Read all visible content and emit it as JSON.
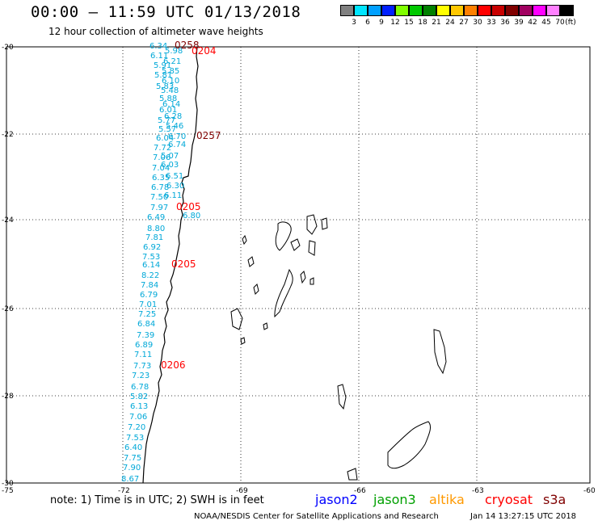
{
  "header": {
    "title": "00:00 – 11:59 UTC 01/13/2018",
    "subtitle": "12 hour collection of altimeter wave heights"
  },
  "legend": {
    "colors": [
      "#808080",
      "#00e5ff",
      "#00a0ff",
      "#0020ff",
      "#80ff00",
      "#00c800",
      "#008000",
      "#ffff00",
      "#ffc800",
      "#ff8000",
      "#ff0000",
      "#c80000",
      "#800000",
      "#a00060",
      "#ff00ff",
      "#ff80ff",
      "#000000"
    ],
    "labels": [
      "3",
      "6",
      "9",
      "12",
      "15",
      "18",
      "21",
      "24",
      "27",
      "30",
      "33",
      "36",
      "39",
      "42",
      "45",
      "70",
      "(ft)"
    ]
  },
  "map": {
    "lat_ticks": [
      "-20",
      "-22",
      "-24",
      "-26",
      "-28",
      "-30"
    ],
    "lon_ticks": [
      "-75",
      "-72",
      "-69",
      "-66",
      "-63",
      "-60"
    ],
    "swh_labels": [
      "6.34",
      "6.11",
      "5.98",
      "6.21",
      "5.91",
      "5.85",
      "5.81",
      "6.10",
      "5.83",
      "5.48",
      "5.88",
      "6.14",
      "6.01",
      "6.28",
      "5.77",
      "5.46",
      "5.57",
      "6.04",
      "6.70",
      "7.72",
      "6.74",
      "7.06",
      "5.07",
      "7.04",
      "6.03",
      "6.35",
      "6.51",
      "6.78",
      "6.30",
      "7.50",
      "6.11",
      "7.97",
      "6.49",
      "8.80",
      "7.81",
      "6.92",
      "7.53",
      "6.14",
      "8.22",
      "7.84",
      "6.79",
      "7.01",
      "7.25",
      "6.84",
      "7.39",
      "6.89",
      "7.11",
      "7.73",
      "7.23",
      "6.78",
      "5.82",
      "6.13",
      "7.06",
      "7.20",
      "7.53",
      "6.40",
      "7.75",
      "7.90",
      "8.67"
    ],
    "time_labels": [
      {
        "text": "0258",
        "color": "#800000"
      },
      {
        "text": "0204",
        "color": "#ff0000"
      },
      {
        "text": "0257",
        "color": "#800000"
      },
      {
        "text": "0205",
        "color": "#ff0000"
      },
      {
        "text": "0205",
        "color": "#ff0000"
      },
      {
        "text": "0206",
        "color": "#ff0000"
      }
    ],
    "yellow_label": "6.80",
    "yellow_color": "#ffff00"
  },
  "footer": {
    "note": "note: 1) Time is in UTC; 2) SWH is in feet",
    "satellites": [
      {
        "name": "jason2",
        "color": "#0000ff"
      },
      {
        "name": "jason3",
        "color": "#00a000"
      },
      {
        "name": "altika",
        "color": "#ff9900"
      },
      {
        "name": "cryosat",
        "color": "#ff0000"
      },
      {
        "name": "s3a",
        "color": "#800000"
      }
    ],
    "credit": "NOAA/NESDIS Center for Satellite Applications and Research",
    "timestamp": "Jan 14 13:27:15 UTC 2018"
  }
}
